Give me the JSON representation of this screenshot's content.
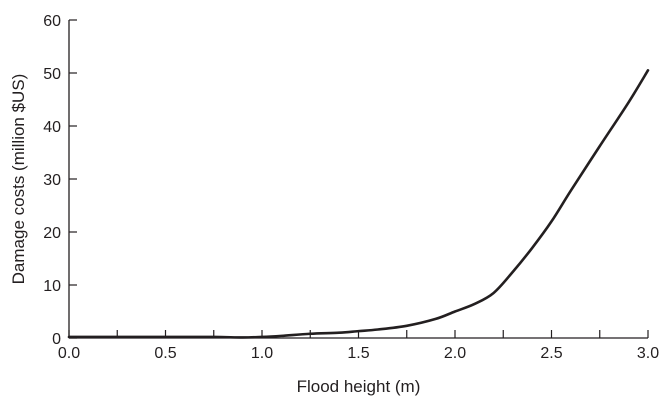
{
  "chart_data": {
    "type": "line",
    "title": "",
    "xlabel": "Flood height (m)",
    "ylabel": "Damage costs (million $US)",
    "xlim": [
      0,
      3
    ],
    "ylim": [
      0,
      60
    ],
    "x_ticks": [
      0,
      0.5,
      1.0,
      1.5,
      2.0,
      2.5,
      3.0
    ],
    "x_tick_labels": [
      "0.0",
      "0.5",
      "1.0",
      "1.5",
      "2.0",
      "2.5",
      "3.0"
    ],
    "x_minor_ticks": [
      0.25,
      0.75,
      1.25,
      1.75,
      2.25,
      2.75
    ],
    "y_ticks": [
      0,
      10,
      20,
      30,
      40,
      50,
      60
    ],
    "y_tick_labels": [
      "0",
      "10",
      "20",
      "30",
      "40",
      "50",
      "60"
    ],
    "grid": false,
    "legend": "none",
    "line_color": "#231f20",
    "series": [
      {
        "x": [
          0.0,
          0.25,
          0.5,
          0.75,
          0.9,
          1.0,
          1.1,
          1.25,
          1.4,
          1.5,
          1.6,
          1.75,
          1.9,
          2.0,
          2.1,
          2.2,
          2.3,
          2.4,
          2.5,
          2.6,
          2.75,
          2.9,
          3.0
        ],
        "y": [
          0.2,
          0.2,
          0.2,
          0.2,
          0.1,
          0.2,
          0.4,
          0.8,
          1.0,
          1.3,
          1.6,
          2.3,
          3.6,
          5.0,
          6.4,
          8.5,
          12.5,
          17.0,
          22.0,
          27.8,
          36.2,
          44.5,
          50.5
        ]
      }
    ]
  }
}
